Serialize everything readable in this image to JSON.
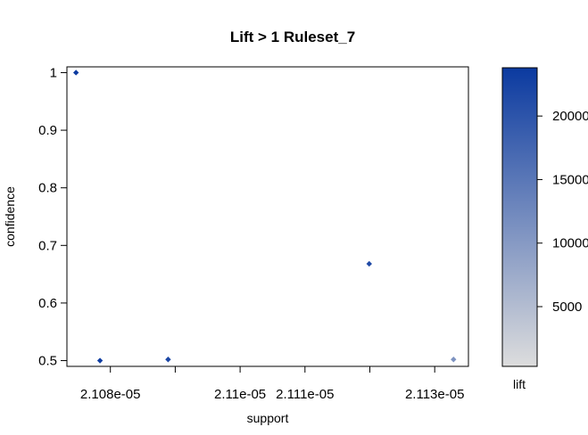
{
  "chart_data": {
    "type": "scatter",
    "title": "Lift > 1 Ruleset_7",
    "xlabel": "support",
    "ylabel": "confidence",
    "xlim": [
      2.10733e-05,
      2.11352e-05
    ],
    "ylim": [
      0.49,
      1.01
    ],
    "xticks": [
      {
        "value": 2.108e-05,
        "label": "2.108e-05"
      },
      {
        "value": 2.11e-05,
        "label": "2.11e-05"
      },
      {
        "value": 2.111e-05,
        "label": "2.111e-05"
      },
      {
        "value": 2.113e-05,
        "label": "2.113e-05"
      }
    ],
    "extra_xticks": [
      2.109e-05,
      2.112e-05
    ],
    "yticks": [
      {
        "value": 0.5,
        "label": "0.5"
      },
      {
        "value": 0.6,
        "label": "0.6"
      },
      {
        "value": 0.7,
        "label": "0.7"
      },
      {
        "value": 0.8,
        "label": "0.8"
      },
      {
        "value": 0.9,
        "label": "0.9"
      },
      {
        "value": 1.0,
        "label": "1"
      }
    ],
    "points": [
      {
        "x": 2.10747e-05,
        "y": 1.0,
        "lift": 23500
      },
      {
        "x": 2.10784e-05,
        "y": 0.5,
        "lift": 23200
      },
      {
        "x": 2.10889e-05,
        "y": 0.502,
        "lift": 22000
      },
      {
        "x": 2.11199e-05,
        "y": 0.668,
        "lift": 21500
      },
      {
        "x": 2.11329e-05,
        "y": 0.502,
        "lift": 11000
      }
    ],
    "colorbar": {
      "label": "lift",
      "min": 300,
      "max": 23800,
      "low_color": "#dddddd",
      "high_color": "#0b3aa0",
      "ticks": [
        {
          "value": 5000,
          "label": "5000"
        },
        {
          "value": 10000,
          "label": "10000"
        },
        {
          "value": 15000,
          "label": "15000"
        },
        {
          "value": 20000,
          "label": "20000"
        }
      ]
    }
  }
}
